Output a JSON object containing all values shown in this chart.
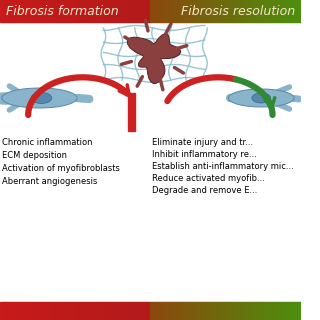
{
  "title_left": "Fibrosis formation",
  "title_right": "Fibrosis resolution",
  "title_fontsize": 9,
  "title_color": "#f5e6c8",
  "bg_color": "#ffffff",
  "left_text": [
    "Chronic inflammation",
    "ECM deposition",
    "Activation of myofibroblasts",
    "Aberrant angiogenesis"
  ],
  "right_text": [
    "Eliminate injury and tr...",
    "Inhibit inflammatory re...",
    "Establish anti-inflammatory mic...",
    "Reduce activated myofib...",
    "Degrade and remove E..."
  ],
  "text_fontsize": 6.0,
  "arrow_left_color": "#cc2222",
  "arrow_right_color1": "#cc2222",
  "arrow_right_color2": "#338833",
  "grid_color": "#88bbcc",
  "cell_body_color": "#8ab4cc",
  "cell_nucleus_color": "#5588aa",
  "center_cell_color": "#8B4040",
  "center_cell_edge": "#5a2020"
}
